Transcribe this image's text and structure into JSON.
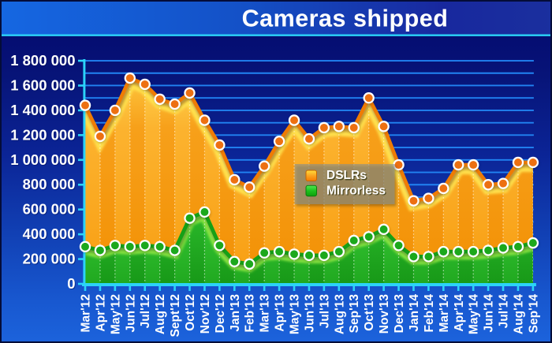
{
  "title": "Cameras shipped",
  "chart_data": {
    "type": "area",
    "title": "Cameras shipped",
    "categories": [
      "Mar'12",
      "Apr'12",
      "May'12",
      "Jun'12",
      "Jul'12",
      "Aug'12",
      "Sept'12",
      "Oct'12",
      "Nov'12",
      "Dec'12",
      "Jan'13",
      "Feb'13",
      "Mar'13",
      "Apr'13",
      "May'13",
      "Jun'13",
      "Jul'13",
      "Aug'13",
      "Sep'13",
      "Oct'13",
      "Nov'13",
      "Dec'13",
      "Jan'14",
      "Feb'14",
      "Mar'14",
      "Apr'14",
      "May'14",
      "Jun'14",
      "Jul'14",
      "Aug'14",
      "Sep'14"
    ],
    "series": [
      {
        "name": "DSLRs",
        "values": [
          1440000,
          1190000,
          1400000,
          1660000,
          1610000,
          1490000,
          1450000,
          1540000,
          1320000,
          1120000,
          840000,
          780000,
          950000,
          1150000,
          1320000,
          1170000,
          1260000,
          1270000,
          1260000,
          1500000,
          1270000,
          960000,
          670000,
          690000,
          770000,
          960000,
          960000,
          800000,
          810000,
          980000,
          980000
        ]
      },
      {
        "name": "Mirrorless",
        "values": [
          300000,
          270000,
          310000,
          300000,
          310000,
          300000,
          270000,
          530000,
          580000,
          310000,
          180000,
          160000,
          250000,
          260000,
          240000,
          230000,
          230000,
          260000,
          350000,
          380000,
          440000,
          310000,
          220000,
          220000,
          260000,
          260000,
          260000,
          270000,
          290000,
          300000,
          330000
        ]
      }
    ],
    "xlabel": "",
    "ylabel": "",
    "ylim": [
      0,
      1800000
    ],
    "ytick_step": 200000,
    "ytick_labels": [
      "1 800 000",
      "1 600 000",
      "1 400 000",
      "1 200 000",
      "1 000 000",
      "800 000",
      "600 000",
      "400 000",
      "200 000",
      "0"
    ],
    "grid": "horizontal, every 100 000",
    "legend_position": "inside-left-middle"
  },
  "legend": {
    "items": [
      {
        "label": "DSLRs",
        "swatch": "orange-gradient-square"
      },
      {
        "label": "Mirrorless",
        "swatch": "green-gradient-square"
      }
    ]
  },
  "colors": {
    "title_text": "#FFFFFF",
    "accent_cyan": "#2BD3F8",
    "gridline_blue": "#2183F2",
    "dslr_line": "#EF7C04",
    "dslr_marker": "#ED7011",
    "dslr_area_light": "#FFD94F",
    "dslr_area_dark": "#F6980E",
    "mirrorless_line": "#16A016",
    "mirrorless_marker": "#1CA81C",
    "mirrorless_area_light": "#5ADC36",
    "mirrorless_area_dark": "#1B9E1B",
    "background_top": "#03096E",
    "background_bottom": "#1C64DC",
    "axis_label_text": "#FFFFFF"
  }
}
